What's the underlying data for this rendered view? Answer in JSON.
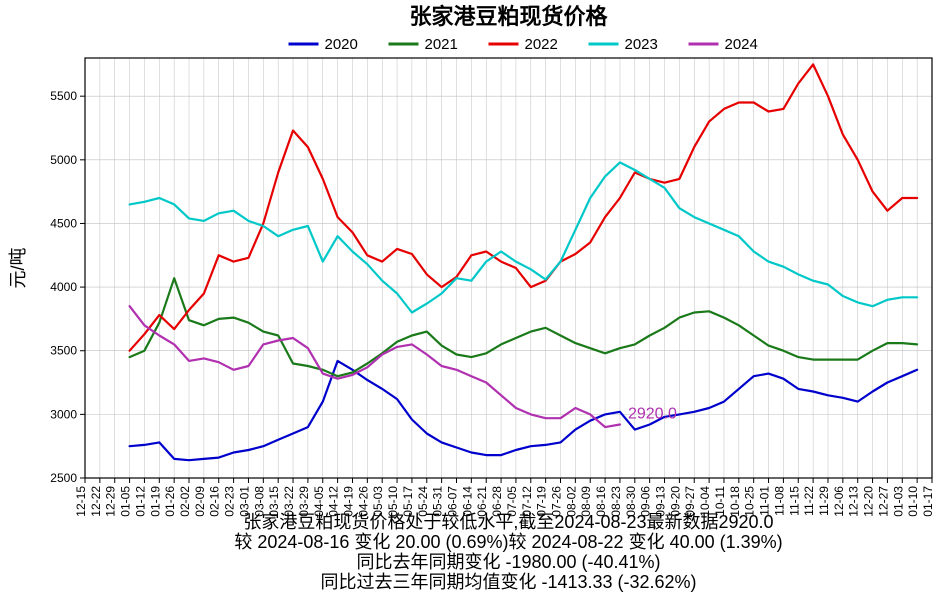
{
  "title": "张家港豆粕现货价格",
  "ylabel": "元/吨",
  "type": "line",
  "background_color": "#ffffff",
  "grid_color": "#bfbfbf",
  "axis_color": "#000000",
  "tick_fontsize": 12,
  "title_fontsize": 22,
  "label_fontsize": 18,
  "legend_fontsize": 15,
  "footer_fontsize": 18,
  "line_width": 2.2,
  "ylim": [
    2500,
    5800
  ],
  "ytick_step": 500,
  "x_ticks": [
    "12-15",
    "12-22",
    "12-29",
    "01-05",
    "01-12",
    "01-19",
    "01-26",
    "02-02",
    "02-09",
    "02-16",
    "02-23",
    "03-01",
    "03-08",
    "03-15",
    "03-22",
    "03-29",
    "04-05",
    "04-12",
    "04-19",
    "04-26",
    "05-03",
    "05-10",
    "05-17",
    "05-24",
    "05-31",
    "06-07",
    "06-14",
    "06-21",
    "06-28",
    "07-05",
    "07-12",
    "07-19",
    "07-26",
    "08-02",
    "08-09",
    "08-16",
    "08-23",
    "08-30",
    "09-06",
    "09-13",
    "09-20",
    "09-27",
    "10-04",
    "10-11",
    "10-18",
    "10-25",
    "11-01",
    "11-08",
    "11-15",
    "11-22",
    "11-29",
    "12-06",
    "12-13",
    "12-20",
    "12-27",
    "01-03",
    "01-10",
    "01-17"
  ],
  "legend": {
    "items": [
      {
        "label": "2020",
        "color": "#0000cc"
      },
      {
        "label": "2021",
        "color": "#1a7a1a"
      },
      {
        "label": "2022",
        "color": "#e60000"
      },
      {
        "label": "2023",
        "color": "#00c8c8"
      },
      {
        "label": "2024",
        "color": "#b030b0"
      }
    ]
  },
  "series": {
    "s2020": {
      "color": "#0000cc",
      "y": [
        null,
        null,
        null,
        2750,
        2760,
        2780,
        2650,
        2640,
        2650,
        2660,
        2700,
        2720,
        2750,
        2800,
        2850,
        2900,
        3100,
        3420,
        3350,
        3270,
        3200,
        3120,
        2960,
        2850,
        2780,
        2740,
        2700,
        2680,
        2680,
        2720,
        2750,
        2760,
        2780,
        2880,
        2950,
        3000,
        3020,
        2880,
        2920,
        2980,
        3000,
        3020,
        3050,
        3100,
        3200,
        3300,
        3320,
        3280,
        3200,
        3180,
        3150,
        3130,
        3100,
        3180,
        3250,
        3300,
        3350,
        null
      ]
    },
    "s2021": {
      "color": "#1a7a1a",
      "y": [
        null,
        null,
        null,
        3450,
        3500,
        3720,
        4070,
        3740,
        3700,
        3750,
        3760,
        3720,
        3650,
        3620,
        3400,
        3380,
        3350,
        3300,
        3330,
        3400,
        3480,
        3570,
        3620,
        3650,
        3540,
        3470,
        3450,
        3480,
        3550,
        3600,
        3650,
        3680,
        3620,
        3560,
        3520,
        3480,
        3520,
        3550,
        3620,
        3680,
        3760,
        3800,
        3810,
        3760,
        3700,
        3620,
        3540,
        3500,
        3450,
        3430,
        3430,
        3430,
        3430,
        3500,
        3560,
        3560,
        3550,
        null
      ]
    },
    "s2022": {
      "color": "#e60000",
      "y": [
        null,
        null,
        null,
        3500,
        3630,
        3780,
        3670,
        3820,
        3950,
        4250,
        4200,
        4230,
        4500,
        4900,
        5230,
        5100,
        4850,
        4550,
        4430,
        4250,
        4200,
        4300,
        4260,
        4100,
        4000,
        4080,
        4250,
        4280,
        4200,
        4150,
        4000,
        4050,
        4200,
        4260,
        4350,
        4550,
        4700,
        4900,
        4850,
        4820,
        4850,
        5100,
        5300,
        5400,
        5450,
        5450,
        5380,
        5400,
        5600,
        5750,
        5500,
        5200,
        5000,
        4750,
        4600,
        4700,
        4700,
        null
      ]
    },
    "s2023": {
      "color": "#00c8c8",
      "y": [
        null,
        null,
        null,
        4650,
        4670,
        4700,
        4650,
        4540,
        4520,
        4580,
        4600,
        4520,
        4480,
        4400,
        4450,
        4480,
        4200,
        4400,
        4280,
        4180,
        4050,
        3950,
        3800,
        3870,
        3950,
        4070,
        4050,
        4200,
        4280,
        4200,
        4140,
        4060,
        4200,
        4450,
        4700,
        4870,
        4980,
        4920,
        4850,
        4780,
        4620,
        4550,
        4500,
        4450,
        4400,
        4280,
        4200,
        4160,
        4100,
        4050,
        4020,
        3930,
        3880,
        3850,
        3900,
        3920,
        3920,
        null
      ]
    },
    "s2024": {
      "color": "#b030b0",
      "y": [
        null,
        null,
        null,
        3850,
        3700,
        3620,
        3550,
        3420,
        3440,
        3410,
        3350,
        3380,
        3550,
        3580,
        3600,
        3520,
        3320,
        3280,
        3310,
        3370,
        3470,
        3530,
        3550,
        3470,
        3380,
        3350,
        3300,
        3250,
        3150,
        3050,
        3000,
        2970,
        2970,
        3050,
        3000,
        2900,
        2920,
        null,
        null,
        null,
        null,
        null,
        null,
        null,
        null,
        null,
        null,
        null,
        null,
        null,
        null,
        null,
        null,
        null,
        null,
        null,
        null,
        null
      ]
    }
  },
  "annotation": {
    "text": "2920.0",
    "color": "#b030b0",
    "x_index": 36,
    "y": 2920
  },
  "footer_lines": [
    "张家港豆粕现货价格处于较低水平,截至2024-08-23最新数据2920.0",
    "较 2024-08-16 变化 20.00 (0.69%)较 2024-08-22 变化 40.00 (1.39%)",
    "同比去年同期变化 -1980.00 (-40.41%)",
    "同比过去三年同期均值变化 -1413.33 (-32.62%)"
  ]
}
